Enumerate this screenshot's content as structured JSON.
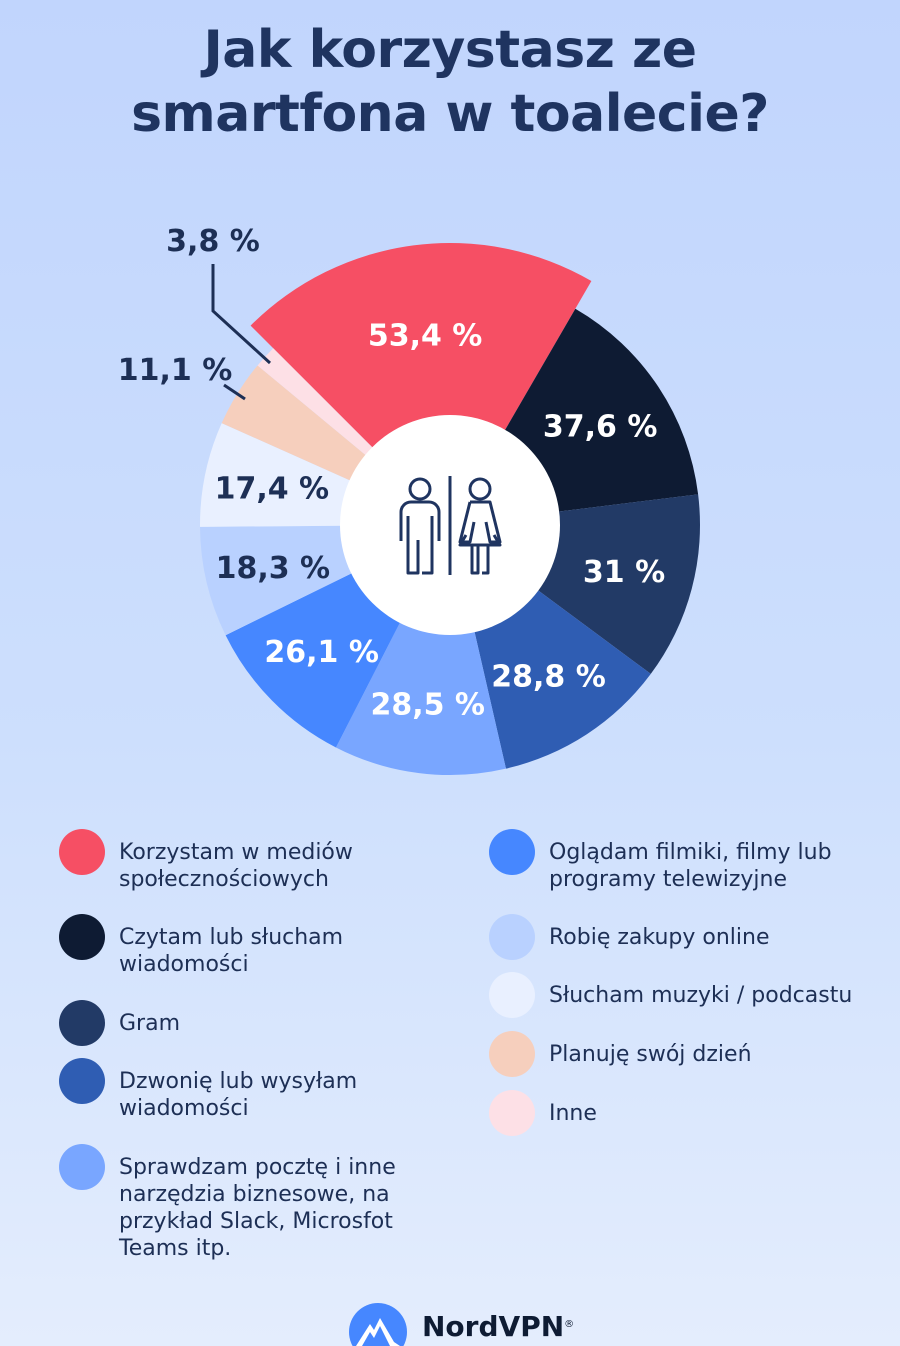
{
  "chart_data": {
    "type": "pie",
    "title": "Jak korzystasz ze smartfona w toalecie?",
    "categories": [
      "Korzystam w mediów społecznościowych",
      "Czytam lub słucham wiadomości",
      "Gram",
      "Dzwonię lub wysyłam wiadomości",
      "Sprawdzam pocztę i inne narzędzia biznesowe, na przykład Slack, Microsfot Teams itp.",
      "Oglądam filmiki, filmy lub programy telewizyjne",
      "Robię zakupy online",
      "Słucham muzyki / podcastu",
      "Planuję swój dzień",
      "Inne"
    ],
    "values": [
      53.4,
      37.6,
      31,
      28.8,
      28.5,
      26.1,
      18.3,
      17.4,
      11.1,
      3.8
    ],
    "labels": [
      "53,4 %",
      "37,6 %",
      "31 %",
      "28,8 %",
      "28,5 %",
      "26,1 %",
      "18,3 %",
      "17,4 %",
      "11,1 %",
      "3,8 %"
    ],
    "colors": [
      "#f64f64",
      "#0e1b33",
      "#223a66",
      "#2f5db3",
      "#79a6ff",
      "#4687ff",
      "#b9d1ff",
      "#e9f0ff",
      "#f6cfbd",
      "#fde0e6"
    ],
    "label_colors": [
      "#ffffff",
      "#ffffff",
      "#ffffff",
      "#ffffff",
      "#ffffff",
      "#ffffff",
      "#1d2f55",
      "#1d2f55",
      "#1d2f55",
      "#1d2f55"
    ],
    "legend_placement": "bottom",
    "center_icon": "restroom-icon"
  },
  "title_lines": [
    "Jak korzystasz ze",
    "smartfona w toalecie?"
  ],
  "legend_left": [
    0,
    1,
    2,
    3,
    4
  ],
  "legend_right": [
    5,
    6,
    7,
    8,
    9
  ],
  "brand": "NordVPN",
  "brand_mark": "®"
}
